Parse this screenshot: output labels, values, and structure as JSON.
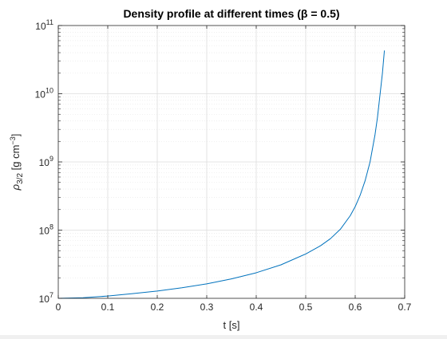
{
  "chart_data": {
    "type": "line",
    "title": "Density profile at different times (β = 0.5)",
    "xlabel": "t [s]",
    "ylabel": "ρ3/2 [g cm−3]",
    "ylabel_parts": {
      "symbol": "ρ",
      "subscript": "3/2",
      "unit_prefix": " [g cm",
      "unit_exponent": "−3",
      "unit_suffix": "]"
    },
    "xlim": [
      0,
      0.7
    ],
    "ylim": [
      10000000,
      100000000000
    ],
    "yscale": "log",
    "grid": true,
    "minor_grid": true,
    "x_ticks": [
      0,
      0.1,
      0.2,
      0.3,
      0.4,
      0.5,
      0.6,
      0.7
    ],
    "x_tick_labels": [
      "0",
      "0.1",
      "0.2",
      "0.3",
      "0.4",
      "0.5",
      "0.6",
      "0.7"
    ],
    "y_ticks": [
      {
        "value": 10000000,
        "base": "10",
        "exp": "7"
      },
      {
        "value": 100000000,
        "base": "10",
        "exp": "8"
      },
      {
        "value": 1000000000,
        "base": "10",
        "exp": "9"
      },
      {
        "value": 10000000000,
        "base": "10",
        "exp": "10"
      },
      {
        "value": 100000000000,
        "base": "10",
        "exp": "11"
      }
    ],
    "series": [
      {
        "color": "#0072BD",
        "x": [
          0,
          0.05,
          0.1,
          0.15,
          0.2,
          0.25,
          0.3,
          0.35,
          0.4,
          0.45,
          0.5,
          0.53,
          0.55,
          0.57,
          0.59,
          0.6,
          0.61,
          0.62,
          0.63,
          0.64,
          0.645,
          0.65,
          0.655,
          0.659
        ],
        "y": [
          10000000,
          10200000,
          10800000,
          11700000,
          12800000,
          14300000,
          16300000,
          19300000,
          23700000,
          31000000,
          44700000,
          59000000,
          75000000,
          103000000,
          163000000,
          221000000,
          325000000,
          530000000,
          1000000000,
          2500000000,
          4500000000,
          9500000000,
          20000000000,
          43000000000
        ]
      }
    ]
  }
}
